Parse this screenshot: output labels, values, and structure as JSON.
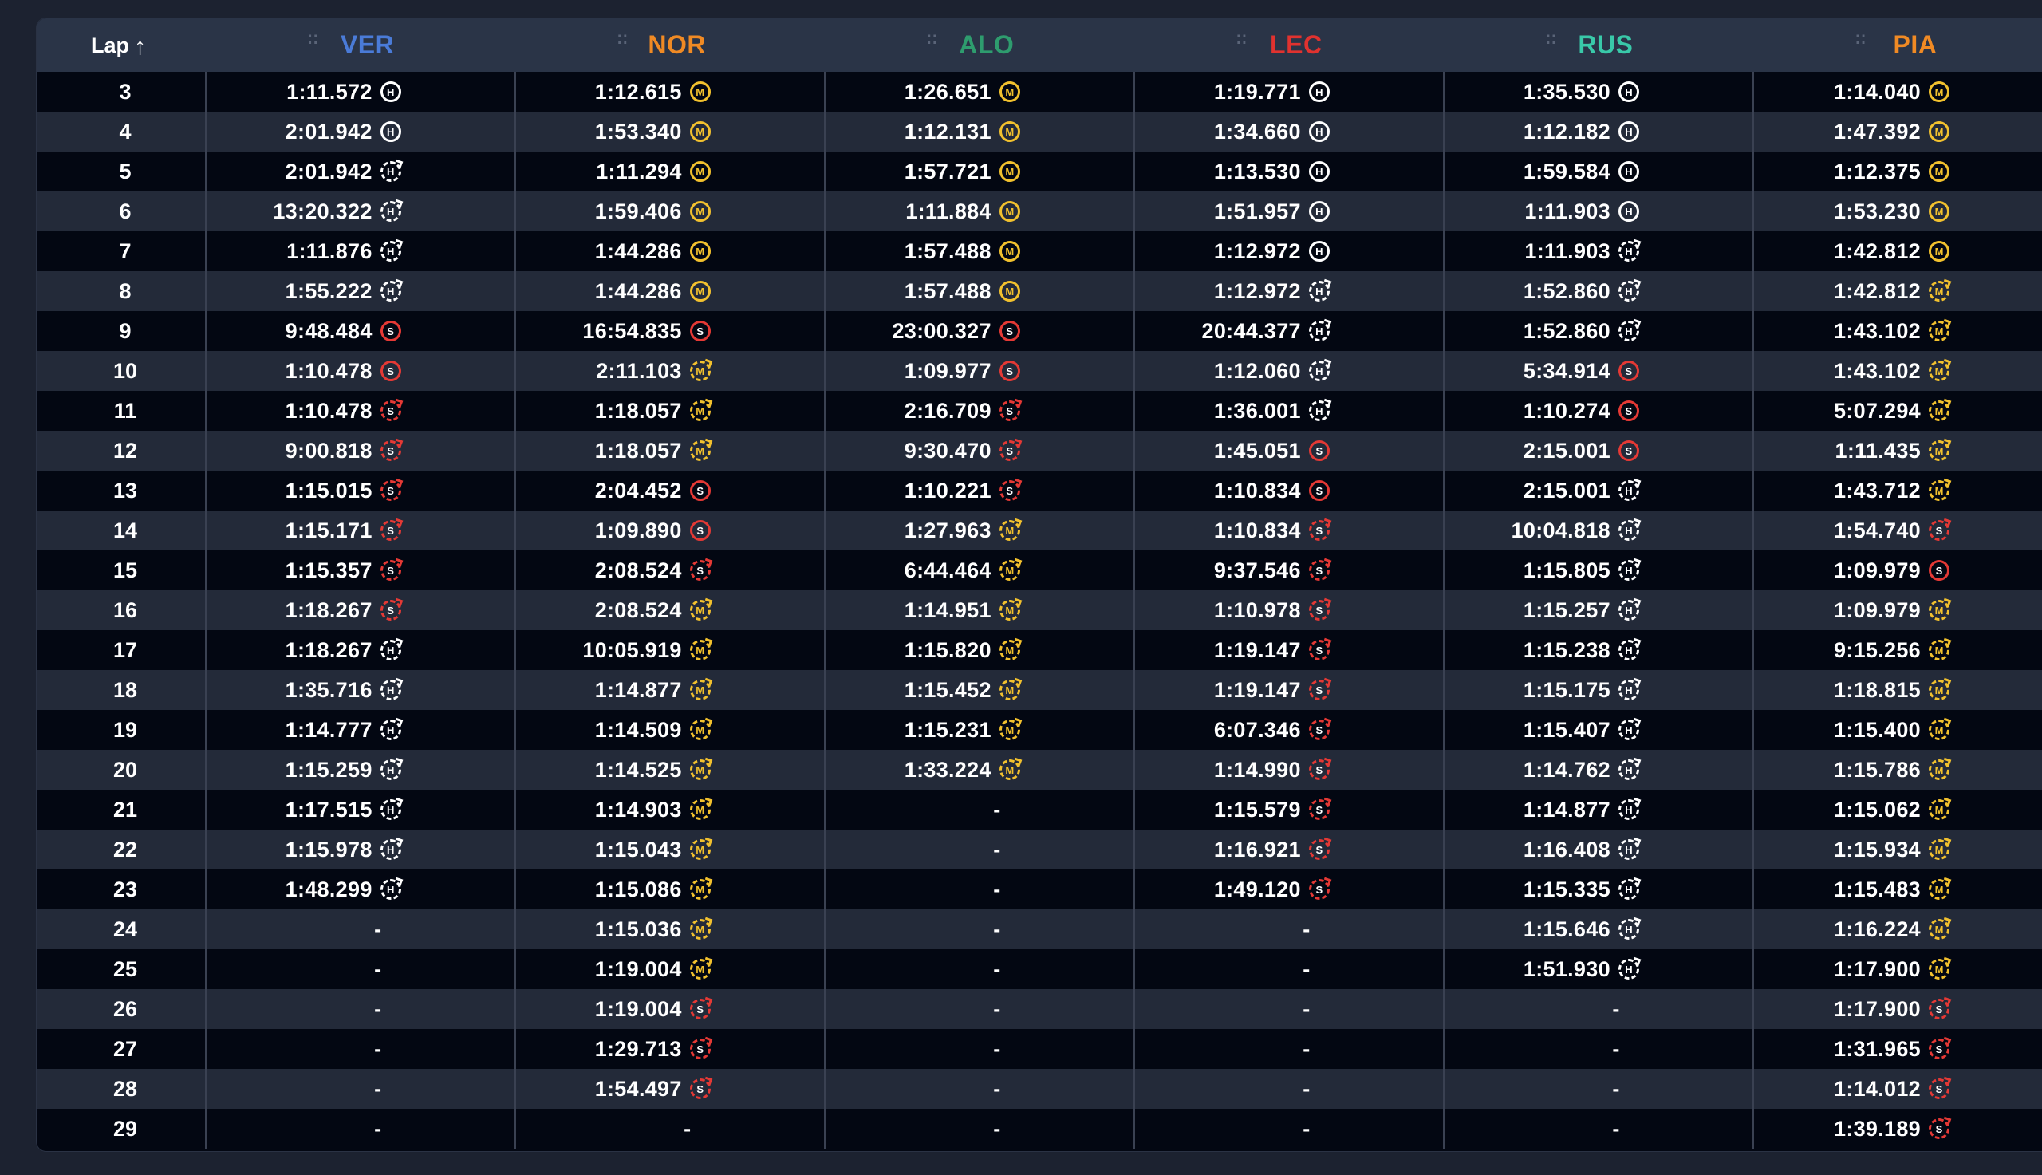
{
  "header": {
    "lap_label": "Lap",
    "sort_arrow": "↑",
    "drivers": [
      {
        "code": "VER",
        "color": "#4a7bd8"
      },
      {
        "code": "NOR",
        "color": "#f08a24"
      },
      {
        "code": "ALO",
        "color": "#2e9c6e"
      },
      {
        "code": "LEC",
        "color": "#e0322f"
      },
      {
        "code": "RUS",
        "color": "#39c9a9"
      },
      {
        "code": "PIA",
        "color": "#f08a24"
      }
    ]
  },
  "rows": [
    {
      "lap": "3",
      "cells": [
        [
          "1:11.572",
          "H",
          false
        ],
        [
          "1:12.615",
          "M",
          false
        ],
        [
          "1:26.651",
          "M",
          false
        ],
        [
          "1:19.771",
          "H",
          false
        ],
        [
          "1:35.530",
          "H",
          false
        ],
        [
          "1:14.040",
          "M",
          false
        ]
      ]
    },
    {
      "lap": "4",
      "cells": [
        [
          "2:01.942",
          "H",
          false
        ],
        [
          "1:53.340",
          "M",
          false
        ],
        [
          "1:12.131",
          "M",
          false
        ],
        [
          "1:34.660",
          "H",
          false
        ],
        [
          "1:12.182",
          "H",
          false
        ],
        [
          "1:47.392",
          "M",
          false
        ]
      ]
    },
    {
      "lap": "5",
      "cells": [
        [
          "2:01.942",
          "H",
          true
        ],
        [
          "1:11.294",
          "M",
          false
        ],
        [
          "1:57.721",
          "M",
          false
        ],
        [
          "1:13.530",
          "H",
          false
        ],
        [
          "1:59.584",
          "H",
          false
        ],
        [
          "1:12.375",
          "M",
          false
        ]
      ]
    },
    {
      "lap": "6",
      "cells": [
        [
          "13:20.322",
          "H",
          true
        ],
        [
          "1:59.406",
          "M",
          false
        ],
        [
          "1:11.884",
          "M",
          false
        ],
        [
          "1:51.957",
          "H",
          false
        ],
        [
          "1:11.903",
          "H",
          false
        ],
        [
          "1:53.230",
          "M",
          false
        ]
      ]
    },
    {
      "lap": "7",
      "cells": [
        [
          "1:11.876",
          "H",
          true
        ],
        [
          "1:44.286",
          "M",
          false
        ],
        [
          "1:57.488",
          "M",
          false
        ],
        [
          "1:12.972",
          "H",
          false
        ],
        [
          "1:11.903",
          "H",
          true
        ],
        [
          "1:42.812",
          "M",
          false
        ]
      ]
    },
    {
      "lap": "8",
      "cells": [
        [
          "1:55.222",
          "H",
          true
        ],
        [
          "1:44.286",
          "M",
          false
        ],
        [
          "1:57.488",
          "M",
          false
        ],
        [
          "1:12.972",
          "H",
          true
        ],
        [
          "1:52.860",
          "H",
          true
        ],
        [
          "1:42.812",
          "M",
          true
        ]
      ]
    },
    {
      "lap": "9",
      "cells": [
        [
          "9:48.484",
          "S",
          false
        ],
        [
          "16:54.835",
          "S",
          false
        ],
        [
          "23:00.327",
          "S",
          false
        ],
        [
          "20:44.377",
          "H",
          true
        ],
        [
          "1:52.860",
          "H",
          true
        ],
        [
          "1:43.102",
          "M",
          true
        ]
      ]
    },
    {
      "lap": "10",
      "cells": [
        [
          "1:10.478",
          "S",
          false
        ],
        [
          "2:11.103",
          "M",
          true
        ],
        [
          "1:09.977",
          "S",
          false
        ],
        [
          "1:12.060",
          "H",
          true
        ],
        [
          "5:34.914",
          "S",
          false
        ],
        [
          "1:43.102",
          "M",
          true
        ]
      ]
    },
    {
      "lap": "11",
      "cells": [
        [
          "1:10.478",
          "S",
          true
        ],
        [
          "1:18.057",
          "M",
          true
        ],
        [
          "2:16.709",
          "S",
          true
        ],
        [
          "1:36.001",
          "H",
          true
        ],
        [
          "1:10.274",
          "S",
          false
        ],
        [
          "5:07.294",
          "M",
          true
        ]
      ]
    },
    {
      "lap": "12",
      "cells": [
        [
          "9:00.818",
          "S",
          true
        ],
        [
          "1:18.057",
          "M",
          true
        ],
        [
          "9:30.470",
          "S",
          true
        ],
        [
          "1:45.051",
          "S",
          false
        ],
        [
          "2:15.001",
          "S",
          false
        ],
        [
          "1:11.435",
          "M",
          true
        ]
      ]
    },
    {
      "lap": "13",
      "cells": [
        [
          "1:15.015",
          "S",
          true
        ],
        [
          "2:04.452",
          "S",
          false
        ],
        [
          "1:10.221",
          "S",
          true
        ],
        [
          "1:10.834",
          "S",
          false
        ],
        [
          "2:15.001",
          "H",
          true
        ],
        [
          "1:43.712",
          "M",
          true
        ]
      ]
    },
    {
      "lap": "14",
      "cells": [
        [
          "1:15.171",
          "S",
          true
        ],
        [
          "1:09.890",
          "S",
          false
        ],
        [
          "1:27.963",
          "M",
          true
        ],
        [
          "1:10.834",
          "S",
          true
        ],
        [
          "10:04.818",
          "H",
          true
        ],
        [
          "1:54.740",
          "S",
          true
        ]
      ]
    },
    {
      "lap": "15",
      "cells": [
        [
          "1:15.357",
          "S",
          true
        ],
        [
          "2:08.524",
          "S",
          true
        ],
        [
          "6:44.464",
          "M",
          true
        ],
        [
          "9:37.546",
          "S",
          true
        ],
        [
          "1:15.805",
          "H",
          true
        ],
        [
          "1:09.979",
          "S",
          false
        ]
      ]
    },
    {
      "lap": "16",
      "cells": [
        [
          "1:18.267",
          "S",
          true
        ],
        [
          "2:08.524",
          "M",
          true
        ],
        [
          "1:14.951",
          "M",
          true
        ],
        [
          "1:10.978",
          "S",
          true
        ],
        [
          "1:15.257",
          "H",
          true
        ],
        [
          "1:09.979",
          "M",
          true
        ]
      ]
    },
    {
      "lap": "17",
      "cells": [
        [
          "1:18.267",
          "H",
          true
        ],
        [
          "10:05.919",
          "M",
          true
        ],
        [
          "1:15.820",
          "M",
          true
        ],
        [
          "1:19.147",
          "S",
          true
        ],
        [
          "1:15.238",
          "H",
          true
        ],
        [
          "9:15.256",
          "M",
          true
        ]
      ]
    },
    {
      "lap": "18",
      "cells": [
        [
          "1:35.716",
          "H",
          true
        ],
        [
          "1:14.877",
          "M",
          true
        ],
        [
          "1:15.452",
          "M",
          true
        ],
        [
          "1:19.147",
          "S",
          true
        ],
        [
          "1:15.175",
          "H",
          true
        ],
        [
          "1:18.815",
          "M",
          true
        ]
      ]
    },
    {
      "lap": "19",
      "cells": [
        [
          "1:14.777",
          "H",
          true
        ],
        [
          "1:14.509",
          "M",
          true
        ],
        [
          "1:15.231",
          "M",
          true
        ],
        [
          "6:07.346",
          "S",
          true
        ],
        [
          "1:15.407",
          "H",
          true
        ],
        [
          "1:15.400",
          "M",
          true
        ]
      ]
    },
    {
      "lap": "20",
      "cells": [
        [
          "1:15.259",
          "H",
          true
        ],
        [
          "1:14.525",
          "M",
          true
        ],
        [
          "1:33.224",
          "M",
          true
        ],
        [
          "1:14.990",
          "S",
          true
        ],
        [
          "1:14.762",
          "H",
          true
        ],
        [
          "1:15.786",
          "M",
          true
        ]
      ]
    },
    {
      "lap": "21",
      "cells": [
        [
          "1:17.515",
          "H",
          true
        ],
        [
          "1:14.903",
          "M",
          true
        ],
        [
          "-",
          "",
          false
        ],
        [
          "1:15.579",
          "S",
          true
        ],
        [
          "1:14.877",
          "H",
          true
        ],
        [
          "1:15.062",
          "M",
          true
        ]
      ]
    },
    {
      "lap": "22",
      "cells": [
        [
          "1:15.978",
          "H",
          true
        ],
        [
          "1:15.043",
          "M",
          true
        ],
        [
          "-",
          "",
          false
        ],
        [
          "1:16.921",
          "S",
          true
        ],
        [
          "1:16.408",
          "H",
          true
        ],
        [
          "1:15.934",
          "M",
          true
        ]
      ]
    },
    {
      "lap": "23",
      "cells": [
        [
          "1:48.299",
          "H",
          true
        ],
        [
          "1:15.086",
          "M",
          true
        ],
        [
          "-",
          "",
          false
        ],
        [
          "1:49.120",
          "S",
          true
        ],
        [
          "1:15.335",
          "H",
          true
        ],
        [
          "1:15.483",
          "M",
          true
        ]
      ]
    },
    {
      "lap": "24",
      "cells": [
        [
          "-",
          "",
          false
        ],
        [
          "1:15.036",
          "M",
          true
        ],
        [
          "-",
          "",
          false
        ],
        [
          "-",
          "",
          false
        ],
        [
          "1:15.646",
          "H",
          true
        ],
        [
          "1:16.224",
          "M",
          true
        ]
      ]
    },
    {
      "lap": "25",
      "cells": [
        [
          "-",
          "",
          false
        ],
        [
          "1:19.004",
          "M",
          true
        ],
        [
          "-",
          "",
          false
        ],
        [
          "-",
          "",
          false
        ],
        [
          "1:51.930",
          "H",
          true
        ],
        [
          "1:17.900",
          "M",
          true
        ]
      ]
    },
    {
      "lap": "26",
      "cells": [
        [
          "-",
          "",
          false
        ],
        [
          "1:19.004",
          "S",
          true
        ],
        [
          "-",
          "",
          false
        ],
        [
          "-",
          "",
          false
        ],
        [
          "-",
          "",
          false
        ],
        [
          "1:17.900",
          "S",
          true
        ]
      ]
    },
    {
      "lap": "27",
      "cells": [
        [
          "-",
          "",
          false
        ],
        [
          "1:29.713",
          "S",
          true
        ],
        [
          "-",
          "",
          false
        ],
        [
          "-",
          "",
          false
        ],
        [
          "-",
          "",
          false
        ],
        [
          "1:31.965",
          "S",
          true
        ]
      ]
    },
    {
      "lap": "28",
      "cells": [
        [
          "-",
          "",
          false
        ],
        [
          "1:54.497",
          "S",
          true
        ],
        [
          "-",
          "",
          false
        ],
        [
          "-",
          "",
          false
        ],
        [
          "-",
          "",
          false
        ],
        [
          "1:14.012",
          "S",
          true
        ]
      ]
    },
    {
      "lap": "29",
      "cells": [
        [
          "-",
          "",
          false
        ],
        [
          "-",
          "",
          false
        ],
        [
          "-",
          "",
          false
        ],
        [
          "-",
          "",
          false
        ],
        [
          "-",
          "",
          false
        ],
        [
          "1:39.189",
          "S",
          true
        ]
      ]
    }
  ]
}
